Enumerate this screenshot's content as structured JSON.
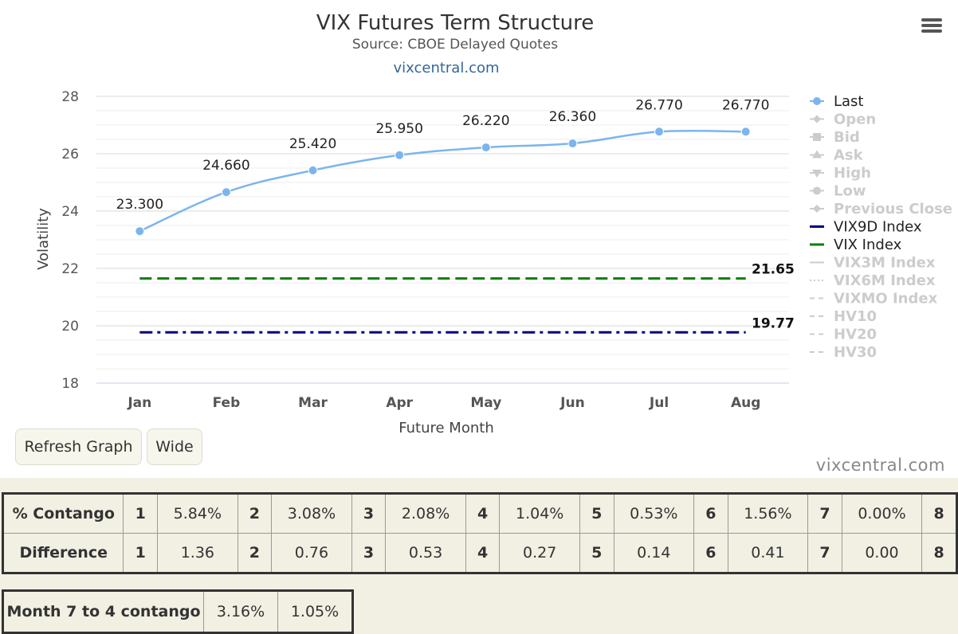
{
  "chart_data": {
    "type": "line",
    "title": "VIX Futures Term Structure",
    "subtitle": "Source: CBOE Delayed Quotes",
    "credit_link": "vixcentral.com",
    "xlabel": "Future Month",
    "ylabel": "Volatility",
    "categories": [
      "Jan",
      "Feb",
      "Mar",
      "Apr",
      "May",
      "Jun",
      "Jul",
      "Aug"
    ],
    "ylim": [
      18,
      28
    ],
    "yticks": [
      "18",
      "20",
      "22",
      "24",
      "26",
      "28"
    ],
    "grid": true,
    "legend_position": "right",
    "series": [
      {
        "name": "Last",
        "values": [
          23.3,
          24.66,
          25.42,
          25.95,
          26.22,
          26.36,
          26.77,
          26.77
        ],
        "labels": [
          "23.300",
          "24.660",
          "25.420",
          "25.950",
          "26.220",
          "26.360",
          "26.770",
          "26.770"
        ],
        "color": "#7cb5ec",
        "style": "solid",
        "markers": true
      },
      {
        "name": "VIX9D Index",
        "value": 19.77,
        "label": "19.77",
        "color": "#000080",
        "style": "dashdot"
      },
      {
        "name": "VIX Index",
        "value": 21.65,
        "label": "21.65",
        "color": "#008000",
        "style": "dashed"
      }
    ],
    "legend": [
      {
        "name": "Last",
        "active": true,
        "symbol": "circle-line",
        "color": "#7cb5ec"
      },
      {
        "name": "Open",
        "active": false,
        "symbol": "diamond"
      },
      {
        "name": "Bid",
        "active": false,
        "symbol": "square"
      },
      {
        "name": "Ask",
        "active": false,
        "symbol": "triangle"
      },
      {
        "name": "High",
        "active": false,
        "symbol": "triangle-down"
      },
      {
        "name": "Low",
        "active": false,
        "symbol": "circle"
      },
      {
        "name": "Previous Close",
        "active": false,
        "symbol": "diamond"
      },
      {
        "name": "VIX9D Index",
        "active": true,
        "symbol": "line",
        "color": "#000080"
      },
      {
        "name": "VIX Index",
        "active": true,
        "symbol": "line",
        "color": "#008000"
      },
      {
        "name": "VIX3M Index",
        "active": false,
        "symbol": "line"
      },
      {
        "name": "VIX6M Index",
        "active": false,
        "symbol": "dotted"
      },
      {
        "name": "VIXMO Index",
        "active": false,
        "symbol": "dashed"
      },
      {
        "name": "HV10",
        "active": false,
        "symbol": "dashed"
      },
      {
        "name": "HV20",
        "active": false,
        "symbol": "dashed"
      },
      {
        "name": "HV30",
        "active": false,
        "symbol": "dashed"
      }
    ]
  },
  "controls": {
    "refresh_label": "Refresh Graph",
    "wide_label": "Wide",
    "watermark": "vixcentral.com"
  },
  "contango_table": {
    "rows": [
      {
        "label": "% Contango",
        "cells": [
          "1",
          "5.84%",
          "2",
          "3.08%",
          "3",
          "2.08%",
          "4",
          "1.04%",
          "5",
          "0.53%",
          "6",
          "1.56%",
          "7",
          "0.00%",
          "8"
        ]
      },
      {
        "label": "Difference",
        "cells": [
          "1",
          "1.36",
          "2",
          "0.76",
          "3",
          "0.53",
          "4",
          "0.27",
          "5",
          "0.14",
          "6",
          "0.41",
          "7",
          "0.00",
          "8"
        ]
      }
    ]
  },
  "summary_table": {
    "label": "Month 7 to 4 contango",
    "values": [
      "3.16%",
      "1.05%"
    ]
  }
}
